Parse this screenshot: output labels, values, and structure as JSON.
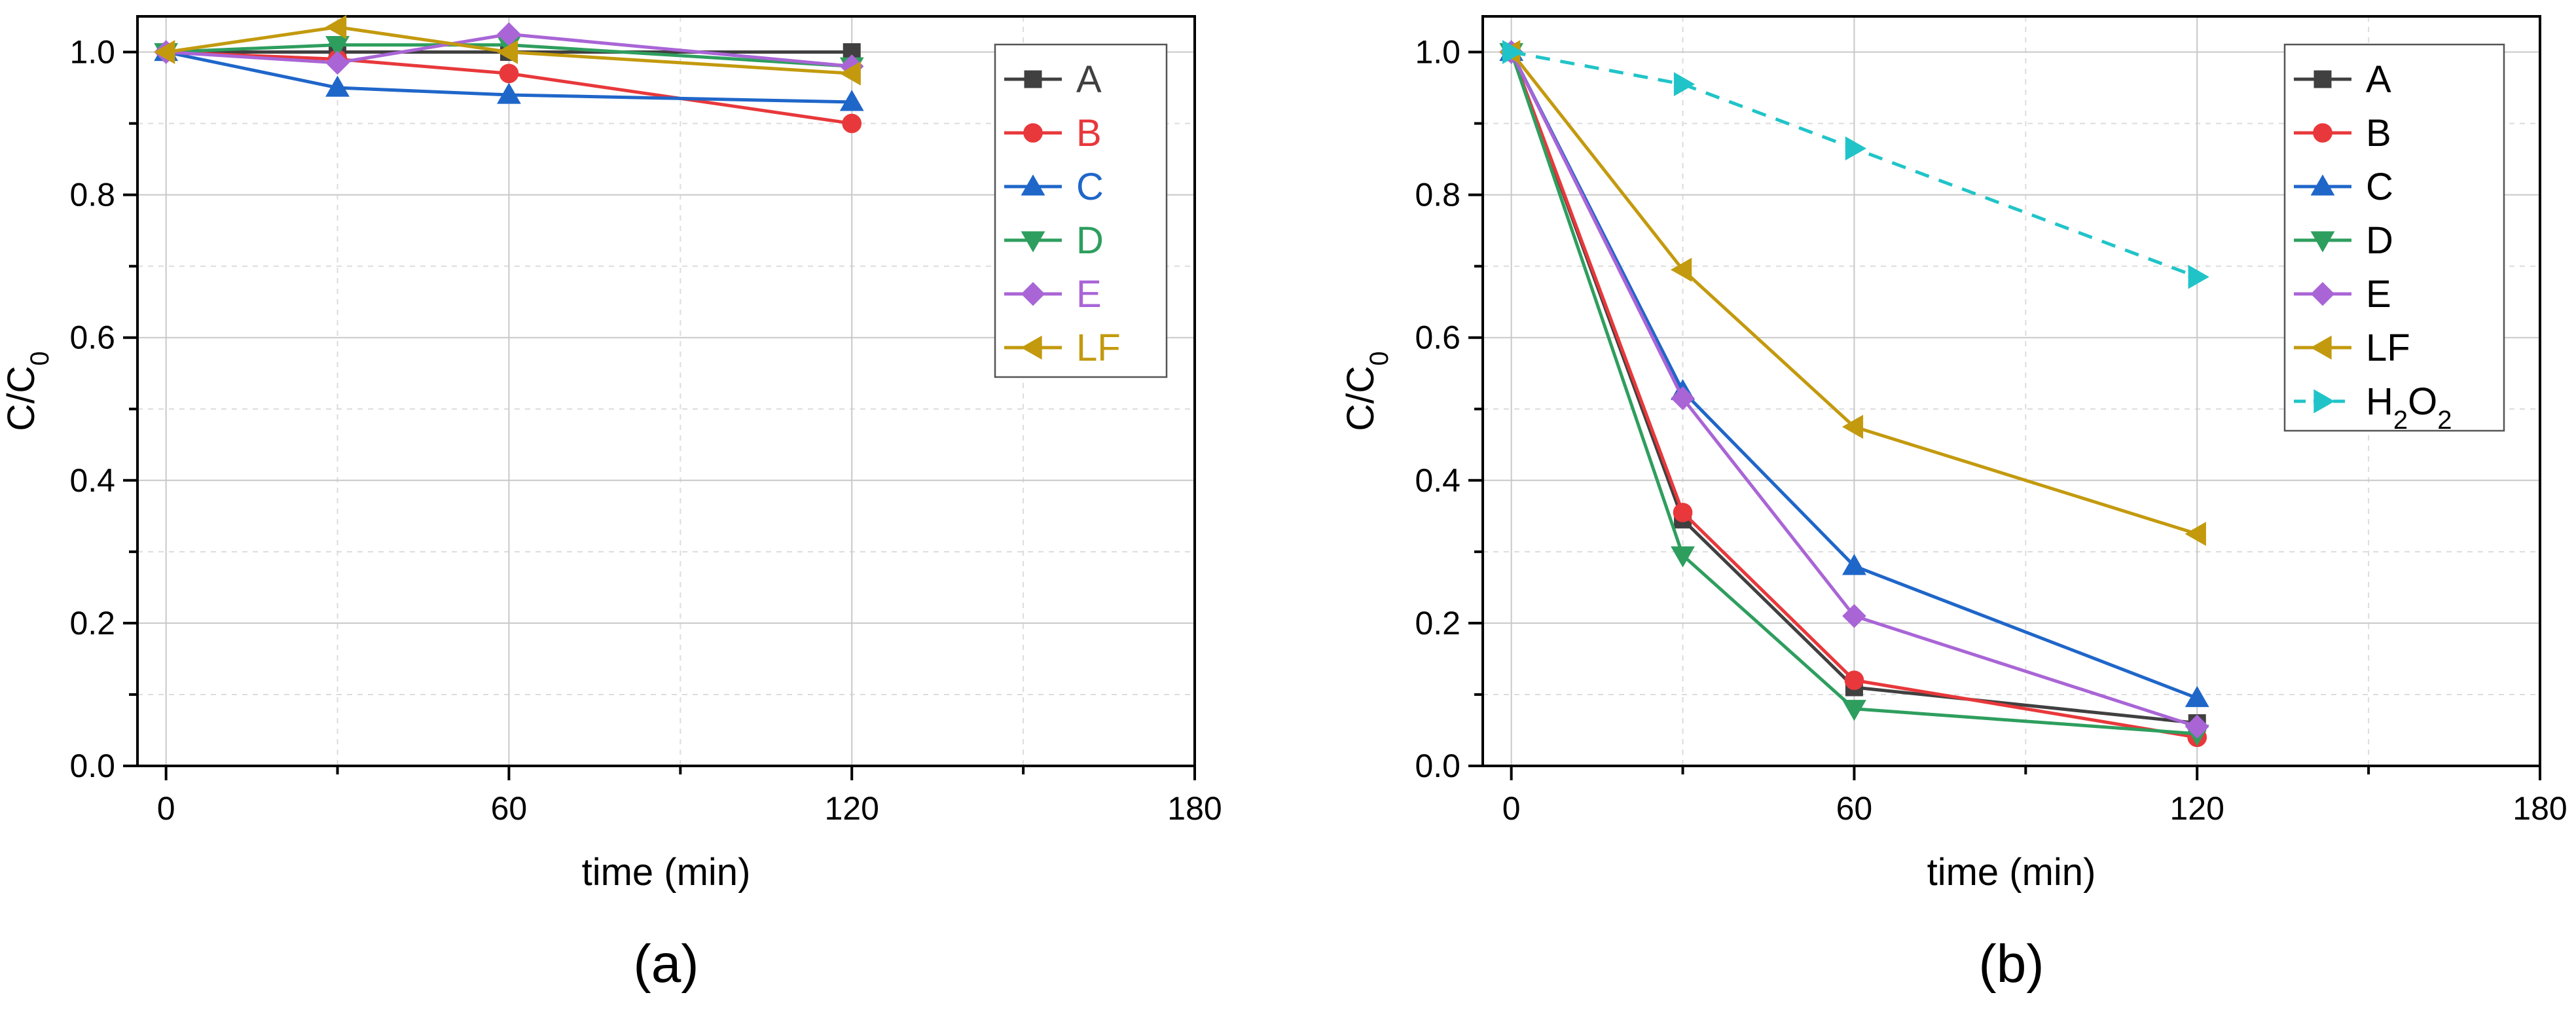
{
  "chart_data": [
    {
      "panel_label": "(a)",
      "type": "line",
      "xlabel": "time (min)",
      "ylabel": "C/C",
      "ylabel_sub": "0",
      "xlim": [
        -5,
        180
      ],
      "ylim": [
        0.0,
        1.05
      ],
      "x_major_ticks": [
        0,
        60,
        120,
        180
      ],
      "x_tick_labels": [
        "0",
        "60",
        "120",
        "180"
      ],
      "x_minor_ticks": [
        30,
        90,
        150
      ],
      "y_major_ticks": [
        0.0,
        0.2,
        0.4,
        0.6,
        0.8,
        1.0
      ],
      "y_tick_labels": [
        "0.0",
        "0.2",
        "0.4",
        "0.6",
        "0.8",
        "1.0"
      ],
      "y_minor_ticks": [
        0.1,
        0.3,
        0.5,
        0.7,
        0.9
      ],
      "legend_position": "top-right",
      "legend_colored_text": true,
      "series": [
        {
          "name": "A",
          "color": "#404040",
          "marker": "square",
          "dashed": false,
          "x": [
            0,
            30,
            60,
            120
          ],
          "y": [
            1.0,
            1.0,
            1.0,
            1.0
          ]
        },
        {
          "name": "B",
          "color": "#e8383b",
          "marker": "circle",
          "dashed": false,
          "x": [
            0,
            30,
            60,
            120
          ],
          "y": [
            1.0,
            0.99,
            0.97,
            0.9
          ]
        },
        {
          "name": "C",
          "color": "#1f66c9",
          "marker": "triangle-up",
          "dashed": false,
          "x": [
            0,
            30,
            60,
            120
          ],
          "y": [
            1.0,
            0.95,
            0.94,
            0.93
          ]
        },
        {
          "name": "D",
          "color": "#2e9e5e",
          "marker": "triangle-down",
          "dashed": false,
          "x": [
            0,
            30,
            60,
            120
          ],
          "y": [
            1.0,
            1.01,
            1.01,
            0.98
          ]
        },
        {
          "name": "E",
          "color": "#a965d6",
          "marker": "diamond",
          "dashed": false,
          "x": [
            0,
            30,
            60,
            120
          ],
          "y": [
            1.0,
            0.985,
            1.025,
            0.98
          ]
        },
        {
          "name": "LF",
          "color": "#c39a0e",
          "marker": "triangle-left",
          "dashed": false,
          "x": [
            0,
            30,
            60,
            120
          ],
          "y": [
            1.0,
            1.035,
            1.0,
            0.97
          ]
        }
      ]
    },
    {
      "panel_label": "(b)",
      "type": "line",
      "xlabel": "time (min)",
      "ylabel": "C/C",
      "ylabel_sub": "0",
      "xlim": [
        -5,
        180
      ],
      "ylim": [
        0.0,
        1.05
      ],
      "x_major_ticks": [
        0,
        60,
        120,
        180
      ],
      "x_tick_labels": [
        "0",
        "60",
        "120",
        "180"
      ],
      "x_minor_ticks": [
        30,
        90,
        150
      ],
      "y_major_ticks": [
        0.0,
        0.2,
        0.4,
        0.6,
        0.8,
        1.0
      ],
      "y_tick_labels": [
        "0.0",
        "0.2",
        "0.4",
        "0.6",
        "0.8",
        "1.0"
      ],
      "y_minor_ticks": [
        0.1,
        0.3,
        0.5,
        0.7,
        0.9
      ],
      "legend_position": "top-right",
      "legend_colored_text": false,
      "series": [
        {
          "name": "A",
          "color": "#404040",
          "marker": "square",
          "dashed": false,
          "x": [
            0,
            30,
            60,
            120
          ],
          "y": [
            1.0,
            0.345,
            0.11,
            0.06
          ]
        },
        {
          "name": "B",
          "color": "#e8383b",
          "marker": "circle",
          "dashed": false,
          "x": [
            0,
            30,
            60,
            120
          ],
          "y": [
            1.0,
            0.355,
            0.12,
            0.04
          ]
        },
        {
          "name": "C",
          "color": "#1f66c9",
          "marker": "triangle-up",
          "dashed": false,
          "x": [
            0,
            30,
            60,
            120
          ],
          "y": [
            1.0,
            0.525,
            0.28,
            0.095
          ]
        },
        {
          "name": "D",
          "color": "#2e9e5e",
          "marker": "triangle-down",
          "dashed": false,
          "x": [
            0,
            30,
            60,
            120
          ],
          "y": [
            1.0,
            0.295,
            0.08,
            0.045
          ]
        },
        {
          "name": "E",
          "color": "#a965d6",
          "marker": "diamond",
          "dashed": false,
          "x": [
            0,
            30,
            60,
            120
          ],
          "y": [
            1.0,
            0.515,
            0.21,
            0.055
          ]
        },
        {
          "name": "LF",
          "color": "#c39a0e",
          "marker": "triangle-left",
          "dashed": false,
          "x": [
            0,
            30,
            60,
            120
          ],
          "y": [
            1.0,
            0.695,
            0.475,
            0.325
          ]
        },
        {
          "name": "H",
          "name_parts": [
            "H",
            "2",
            "O",
            "2"
          ],
          "color": "#20c4c8",
          "marker": "triangle-right",
          "dashed": true,
          "x": [
            0,
            30,
            60,
            120
          ],
          "y": [
            1.0,
            0.955,
            0.865,
            0.685
          ]
        }
      ]
    }
  ]
}
